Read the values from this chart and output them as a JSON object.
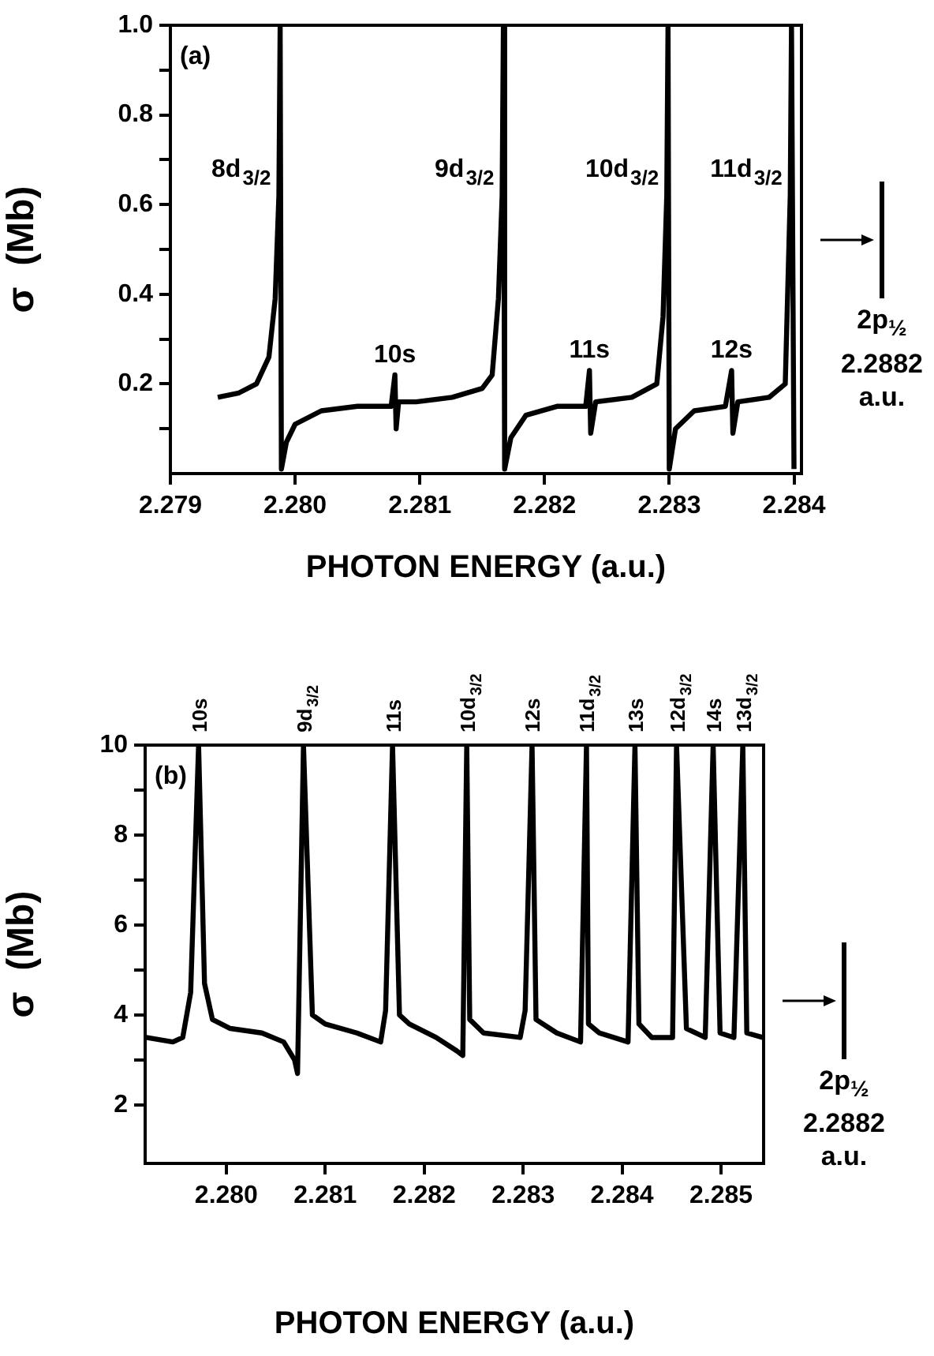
{
  "chart_data": [
    {
      "type": "line",
      "xlabel": "PHOTON ENERGY (a.u.)",
      "ylabel": "σ  (Mb)",
      "xlim": [
        2.279,
        2.28406
      ],
      "ylim": [
        0,
        1
      ],
      "xticks": [
        2.279,
        {
          "value": 2.28,
          "label": "2.280"
        },
        2.281,
        2.282,
        2.283,
        2.284
      ],
      "yticks": [
        {
          "value": 0.1,
          "label": null
        },
        0.2,
        {
          "value": 0.3,
          "label": null
        },
        0.4,
        {
          "value": 0.5,
          "label": null
        },
        0.6,
        {
          "value": 0.7,
          "label": null
        },
        0.8,
        {
          "value": 0.9,
          "label": null
        },
        {
          "value": 1,
          "label": "1.0"
        }
      ],
      "x": [
        2.27938,
        2.27955,
        2.27969,
        2.27979,
        2.27984,
        2.27987,
        2.27988,
        2.27989,
        2.27993,
        2.28,
        2.28021,
        2.2805,
        2.28077,
        2.2808,
        2.28081,
        2.28083,
        2.28097,
        2.28126,
        2.2815,
        2.28158,
        2.28163,
        2.28166,
        2.28167,
        2.28168,
        2.28173,
        2.28185,
        2.2821,
        2.28233,
        2.28236,
        2.28237,
        2.28241,
        2.2827,
        2.2829,
        2.28295,
        2.28298,
        2.28299,
        2.283,
        2.28305,
        2.2832,
        2.28345,
        2.2835,
        2.28351,
        2.28355,
        2.2838,
        2.28393,
        2.28397,
        2.28398,
        2.284
      ],
      "series": [
        {
          "color": "#000000",
          "values": [
            0.17,
            0.18,
            0.2,
            0.26,
            0.39,
            0.62,
            1.0,
            0.01,
            0.07,
            0.11,
            0.14,
            0.15,
            0.15,
            0.22,
            0.1,
            0.16,
            0.16,
            0.17,
            0.19,
            0.22,
            0.39,
            0.62,
            1.0,
            0.01,
            0.08,
            0.13,
            0.15,
            0.15,
            0.23,
            0.09,
            0.16,
            0.17,
            0.2,
            0.35,
            0.62,
            1.0,
            0.01,
            0.1,
            0.14,
            0.15,
            0.23,
            0.09,
            0.16,
            0.17,
            0.2,
            0.62,
            1.0,
            0.01
          ]
        }
      ],
      "annotations": [
        "(a)",
        "2p$_{½}$ 2.2882 a.u.",
        {
          "text": "8d$_{3/2}$",
          "x": 2.27987,
          "y": 0.62
        },
        {
          "text": "9d$_{3/2}$",
          "x": 2.28166,
          "y": 0.62
        },
        {
          "text": "10d$_{3/2}$",
          "x": 2.28298,
          "y": 0.62
        },
        {
          "text": "11d$_{3/2}$",
          "x": 2.28397,
          "y": 0.62
        },
        {
          "text": "10s",
          "x": 2.2808,
          "y": 0.22
        },
        {
          "text": "11s",
          "x": 2.28236,
          "y": 0.23
        },
        {
          "text": "12s",
          "x": 2.2835,
          "y": 0.23
        }
      ]
    },
    {
      "type": "line",
      "xlabel": "PHOTON ENERGY (a.u.)",
      "ylabel": "σ  (Mb)",
      "xlim": [
        2.27918,
        2.28543
      ],
      "ylim": [
        0.7,
        10
      ],
      "xticks": [
        {
          "value": 2.28,
          "label": "2.280"
        },
        2.281,
        2.282,
        2.283,
        2.284,
        2.285
      ],
      "yticks": [
        2,
        {
          "value": 3,
          "label": null
        },
        4,
        {
          "value": 5,
          "label": null
        },
        6,
        {
          "value": 7,
          "label": null
        },
        8,
        {
          "value": 9,
          "label": null
        },
        10
      ],
      "x": [
        2.27919,
        2.27946,
        2.27956,
        2.27964,
        2.27972,
        2.27978,
        2.27986,
        2.28004,
        2.28036,
        2.28058,
        2.28069,
        2.28072,
        2.28078,
        2.28087,
        2.281,
        2.28132,
        2.28156,
        2.28161,
        2.28168,
        2.28175,
        2.28185,
        2.28212,
        2.28233,
        2.28239,
        2.28243,
        2.28246,
        2.2826,
        2.28297,
        2.28302,
        2.28309,
        2.28313,
        2.28334,
        2.28358,
        2.28364,
        2.28366,
        2.28377,
        2.28406,
        2.28413,
        2.28417,
        2.2843,
        2.28451,
        2.28455,
        2.28465,
        2.28484,
        2.28492,
        2.28499,
        2.28513,
        2.28522,
        2.28526,
        2.28542
      ],
      "series": [
        {
          "color": "#000000",
          "values": [
            3.5,
            3.4,
            3.5,
            4.5,
            10,
            4.7,
            3.9,
            3.7,
            3.6,
            3.4,
            3.0,
            2.7,
            10,
            4.0,
            3.8,
            3.6,
            3.4,
            4.1,
            10,
            4.0,
            3.8,
            3.5,
            3.2,
            3.1,
            10,
            3.9,
            3.6,
            3.5,
            4.1,
            10,
            3.9,
            3.6,
            3.4,
            10,
            3.8,
            3.6,
            3.4,
            10,
            3.8,
            3.5,
            3.5,
            10,
            3.7,
            3.5,
            10,
            3.6,
            3.5,
            10,
            3.6,
            3.5
          ]
        }
      ],
      "annotations": [
        "(b)",
        "2p$_{½}$ 2.2882 a.u.",
        {
          "text": "10s",
          "x": 2.27972,
          "y": 10
        },
        {
          "text": "9d$_{3/2}$",
          "x": 2.28078,
          "y": 10
        },
        {
          "text": "11s",
          "x": 2.28168,
          "y": 10
        },
        {
          "text": "10d$_{3/2}$",
          "x": 2.28243,
          "y": 10
        },
        {
          "text": "12s",
          "x": 2.28309,
          "y": 10
        },
        {
          "text": "11d$_{3/2}$",
          "x": 2.28364,
          "y": 10
        },
        {
          "text": "13s",
          "x": 2.28413,
          "y": 10
        },
        {
          "text": "12d$_{3/2}$",
          "x": 2.28455,
          "y": 10
        },
        {
          "text": "14s",
          "x": 2.28492,
          "y": 10
        },
        {
          "text": "13d$_{3/2}$",
          "x": 2.28522,
          "y": 10
        }
      ]
    }
  ]
}
